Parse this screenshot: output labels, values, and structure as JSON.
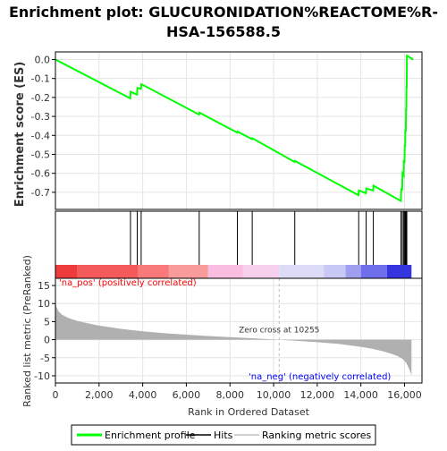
{
  "chart_data": {
    "type": "line",
    "title": "Enrichment plot: GLUCURONIDATION%REACTOME%R-HSA-156588.5",
    "title_lines": [
      "Enrichment plot: GLUCURONIDATION%REACTOME%R-",
      "HSA-156588.5"
    ],
    "xlabel": "Rank in Ordered Dataset",
    "xlim": [
      0,
      16800
    ],
    "x_ticks": [
      0,
      2000,
      4000,
      6000,
      8000,
      10000,
      12000,
      14000,
      16000
    ],
    "x_tick_labels": [
      "0",
      "2,000",
      "4,000",
      "6,000",
      "8,000",
      "10,000",
      "12,000",
      "14,000",
      "16,000"
    ],
    "es_panel": {
      "ylabel": "Enrichment score (ES)",
      "ylim": [
        -0.79,
        0.04
      ],
      "y_ticks": [
        0.0,
        -0.1,
        -0.2,
        -0.3,
        -0.4,
        -0.5,
        -0.6,
        -0.7
      ],
      "y_tick_labels": [
        "0.0",
        "-0.1",
        "-0.2",
        "-0.3",
        "-0.4",
        "-0.5",
        "-0.6",
        "-0.7"
      ],
      "series": [
        {
          "name": "Enrichment profile",
          "color": "#00ff00",
          "x": [
            0,
            3430,
            3450,
            3740,
            3760,
            3920,
            3940,
            6580,
            6600,
            8330,
            8350,
            9010,
            9030,
            10960,
            10980,
            13890,
            13910,
            14230,
            14250,
            14560,
            14580,
            15830,
            15850,
            15890,
            15910,
            15960,
            15970,
            16000,
            16010,
            16030,
            16040,
            16060,
            16070,
            16080,
            16090,
            16100,
            16110,
            16400
          ],
          "y": [
            0.0,
            -0.205,
            -0.17,
            -0.185,
            -0.15,
            -0.155,
            -0.13,
            -0.29,
            -0.28,
            -0.385,
            -0.38,
            -0.42,
            -0.415,
            -0.54,
            -0.535,
            -0.715,
            -0.69,
            -0.705,
            -0.68,
            -0.69,
            -0.665,
            -0.745,
            -0.68,
            -0.69,
            -0.6,
            -0.61,
            -0.53,
            -0.545,
            -0.45,
            -0.46,
            -0.37,
            -0.38,
            -0.26,
            -0.27,
            -0.14,
            -0.15,
            0.02,
            0.0
          ]
        }
      ]
    },
    "hits": {
      "name": "Hits",
      "color": "#000000",
      "x": [
        3440,
        3750,
        3930,
        6590,
        8340,
        9020,
        10970,
        13900,
        14240,
        14570,
        15840,
        15900,
        15965,
        16005,
        16035,
        16065,
        16085,
        16105
      ]
    },
    "ranking_panel": {
      "ylabel": "Ranked list metric (PreRanked)",
      "ylim": [
        -12,
        17
      ],
      "y_ticks": [
        15,
        10,
        5,
        0,
        -5,
        -10
      ],
      "y_tick_labels": [
        "15",
        "10",
        "5",
        "0",
        "-5",
        "-10"
      ],
      "series": [
        {
          "name": "Ranking metric scores",
          "color": "#b0b0b0",
          "x": [
            0,
            50,
            150,
            300,
            600,
            1000,
            1500,
            2000,
            3000,
            4000,
            5000,
            6000,
            7000,
            8000,
            9000,
            10255,
            11000,
            12000,
            13000,
            13500,
            14000,
            14500,
            15000,
            15400,
            15700,
            15900,
            16050,
            16150,
            16250,
            16320
          ],
          "y": [
            10.5,
            9.0,
            7.8,
            6.9,
            6.0,
            5.2,
            4.5,
            3.9,
            3.0,
            2.3,
            1.8,
            1.4,
            1.0,
            0.7,
            0.4,
            0.0,
            -0.3,
            -0.7,
            -1.2,
            -1.6,
            -2.0,
            -2.5,
            -3.2,
            -3.9,
            -4.6,
            -5.3,
            -6.2,
            -7.3,
            -8.6,
            -10.0
          ]
        }
      ],
      "zero_cross_x": 10255,
      "zero_cross_label": "Zero cross at 10255",
      "pos_label": "'na_pos' (positively correlated)",
      "neg_label": "'na_neg' (negatively correlated)",
      "pos_label_color": "#ff0000",
      "neg_label_color": "#0000ff"
    },
    "color_bar": [
      {
        "x0": 0,
        "x1": 1000,
        "color": "#ee3b3b"
      },
      {
        "x0": 1000,
        "x1": 3800,
        "color": "#f45a5a"
      },
      {
        "x0": 3800,
        "x1": 5200,
        "color": "#f77979"
      },
      {
        "x0": 5200,
        "x1": 7000,
        "color": "#f99b9b"
      },
      {
        "x0": 7000,
        "x1": 8600,
        "color": "#f8bde0"
      },
      {
        "x0": 8600,
        "x1": 10255,
        "color": "#f6d0ec"
      },
      {
        "x0": 10255,
        "x1": 12300,
        "color": "#dcdcf6"
      },
      {
        "x0": 12300,
        "x1": 13300,
        "color": "#c8c8f4"
      },
      {
        "x0": 13300,
        "x1": 14000,
        "color": "#9f9ff0"
      },
      {
        "x0": 14000,
        "x1": 15200,
        "color": "#6f6fec"
      },
      {
        "x0": 15200,
        "x1": 16320,
        "color": "#3535e0"
      }
    ],
    "legend": {
      "placement": "bottom",
      "items": [
        {
          "label": "Enrichment profile",
          "color": "#00ff00",
          "kind": "line"
        },
        {
          "label": "Hits",
          "color": "#000000",
          "kind": "line"
        },
        {
          "label": "Ranking metric scores",
          "color": "#d0d0d0",
          "kind": "line"
        }
      ]
    },
    "grid": true
  }
}
